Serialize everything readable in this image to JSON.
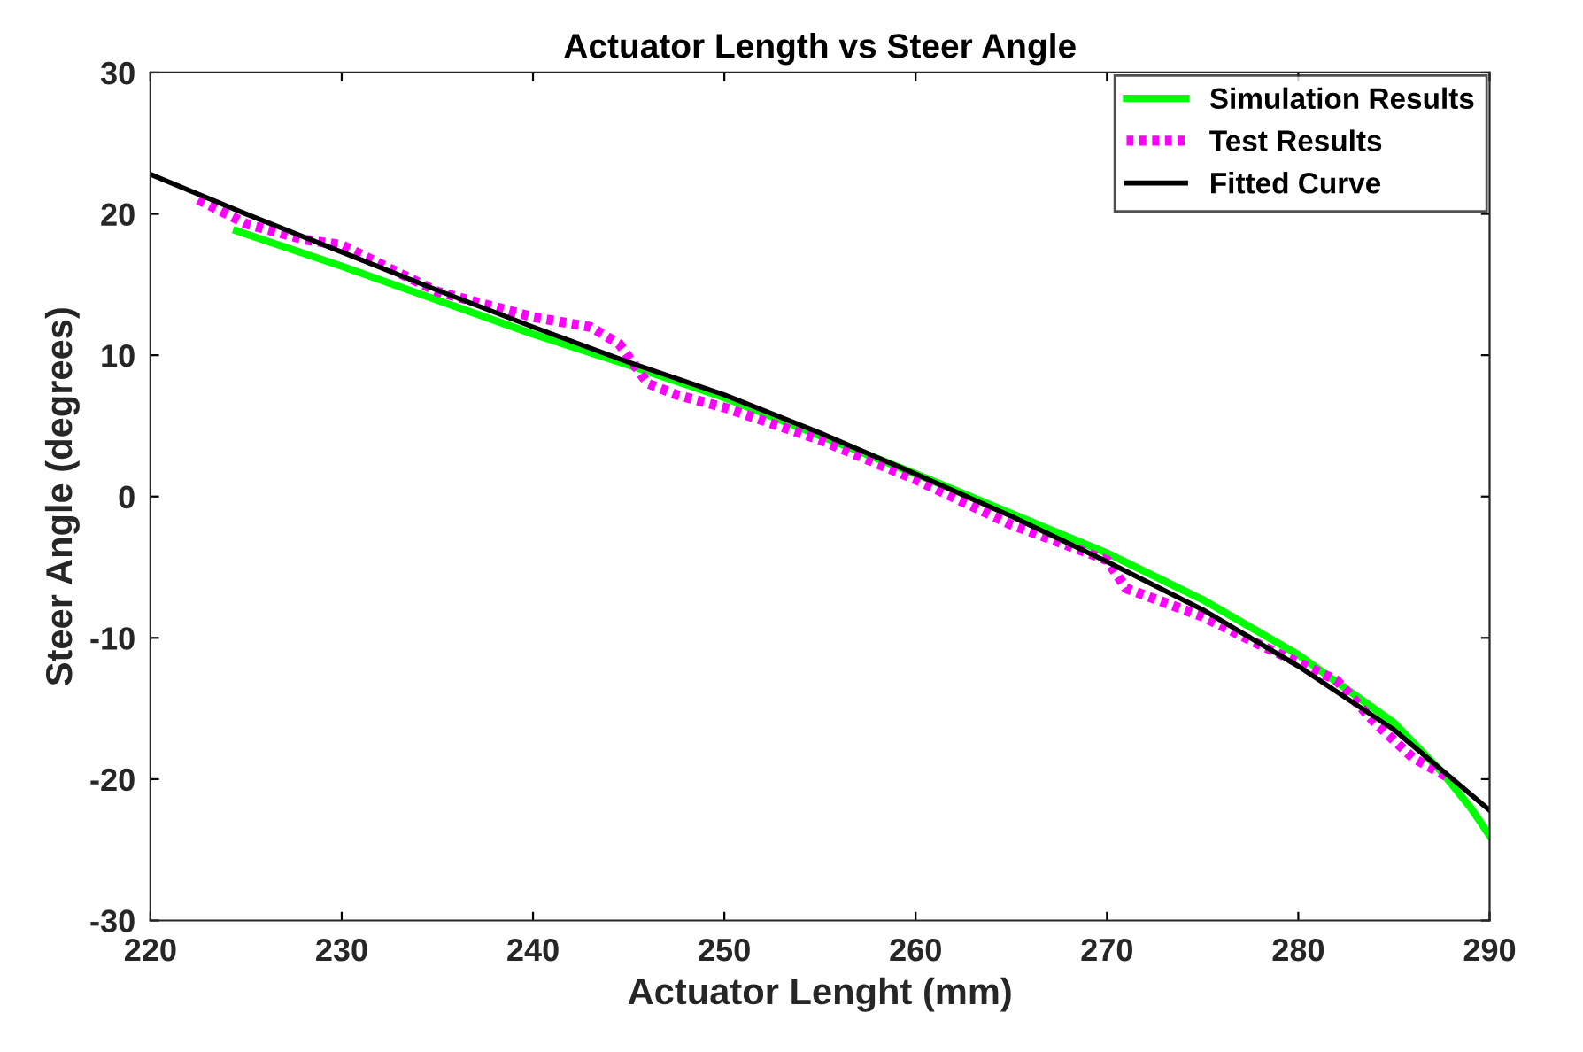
{
  "chart_data": {
    "type": "line",
    "title": "Actuator Length vs Steer Angle",
    "xlabel": "Actuator Lenght (mm)",
    "ylabel": "Steer Angle (degrees)",
    "xlim": [
      220,
      290
    ],
    "ylim": [
      -30,
      30
    ],
    "xticks": [
      220,
      230,
      240,
      250,
      260,
      270,
      280,
      290
    ],
    "yticks": [
      -30,
      -20,
      -10,
      0,
      10,
      20,
      30
    ],
    "grid": false,
    "legend": "top right",
    "marker": "none",
    "series": [
      {
        "name": "Simulation Results",
        "color": "#00ff00",
        "line_style": "solid",
        "x": [
          224.5,
          230,
          240,
          245,
          250,
          260,
          270,
          275,
          280,
          285,
          287.5,
          289,
          290
        ],
        "values": [
          18.8,
          16.3,
          11.5,
          9.3,
          7,
          1.6,
          -4,
          -7.3,
          -11.2,
          -16,
          -19.5,
          -22,
          -24
        ]
      },
      {
        "name": "Test Results",
        "color": "#ff00ff",
        "line_style": "dotted",
        "x": [
          222.5,
          225,
          228,
          230,
          235,
          240,
          243,
          244.5,
          246,
          247.5,
          250,
          255,
          260,
          265,
          270,
          271,
          275,
          278,
          282,
          284,
          286,
          288
        ],
        "values": [
          21,
          19.3,
          18.2,
          17.8,
          14.5,
          12.7,
          12,
          10.8,
          8,
          7.2,
          6.3,
          4,
          1.2,
          -2,
          -4.5,
          -6.5,
          -8.5,
          -10.5,
          -13,
          -16,
          -18.5,
          -20
        ]
      },
      {
        "name": "Fitted Curve",
        "color": "#000000",
        "line_style": "solid",
        "x": [
          220,
          225,
          230,
          235,
          240,
          245,
          250,
          255,
          260,
          265,
          270,
          275,
          280,
          285,
          290
        ],
        "values": [
          22.8,
          20,
          17.3,
          14.6,
          12,
          9.5,
          7.2,
          4.5,
          1.6,
          -1.4,
          -4.6,
          -8,
          -12,
          -16.5,
          -22.2
        ]
      }
    ]
  }
}
